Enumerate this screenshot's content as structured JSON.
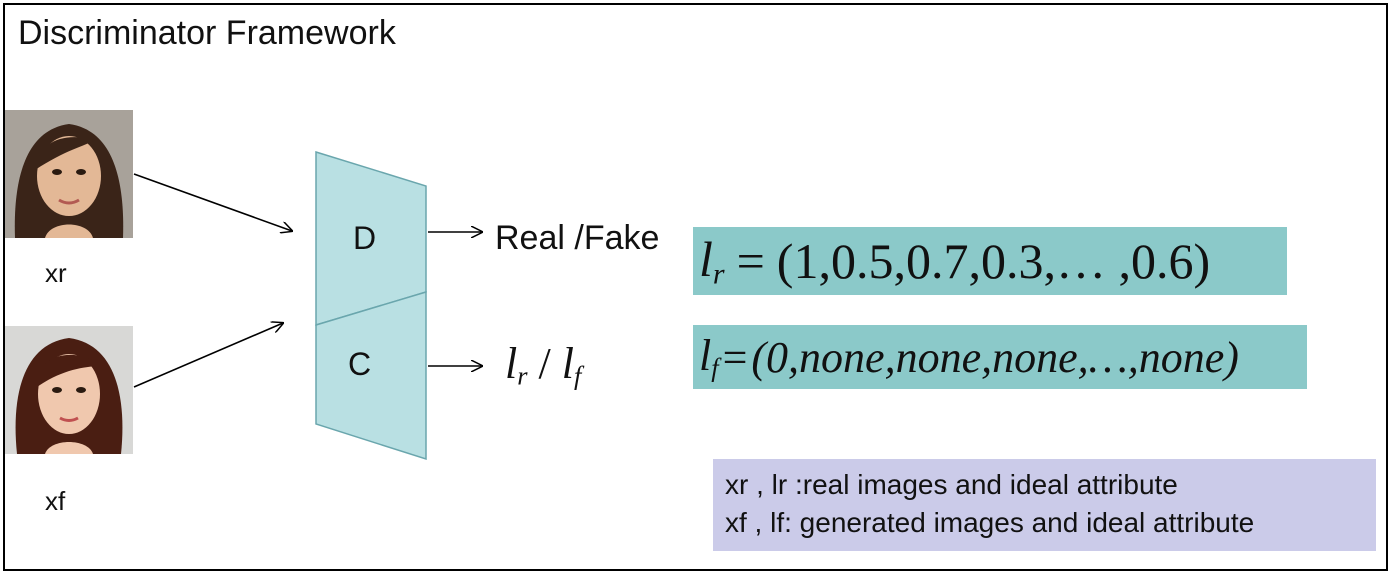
{
  "title": "Discriminator Framework",
  "inputs": {
    "real_label": "xr",
    "fake_label": "xf"
  },
  "blocks": {
    "d_label": "D",
    "c_label": "C",
    "fill_color": "#b9e0e3"
  },
  "outputs": {
    "d_output": "Real /Fake",
    "c_output_math": "lr / lf"
  },
  "equations": {
    "lr_values": "(1,0.5,0.7,0.3,… ,0.6)",
    "lf_values": "(0,none,none,none,…,none)",
    "box_color": "#8bc9c9"
  },
  "legend": {
    "line1": "xr , lr :real images and ideal attribute",
    "line2": "xf , lf: generated images and ideal attribute",
    "box_color": "#cbcbe9"
  }
}
